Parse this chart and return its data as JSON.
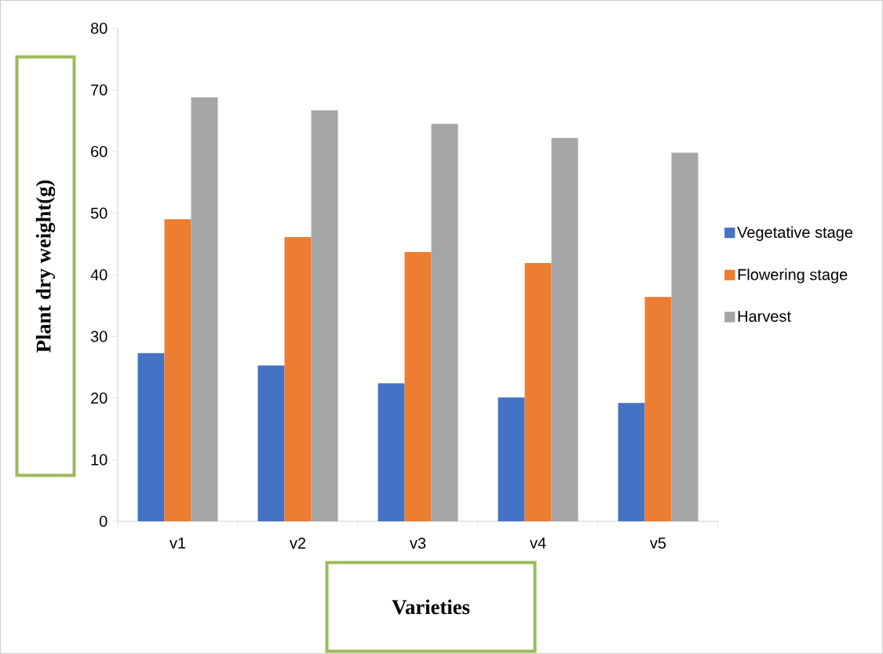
{
  "chart_data": {
    "type": "bar",
    "xlabel": "Varieties",
    "ylabel": "Plant dry weight(g)",
    "categories": [
      "v1",
      "v2",
      "v3",
      "v4",
      "v5"
    ],
    "series": [
      {
        "name": "Vegetative stage",
        "color": "#4472c4",
        "values": [
          27.3,
          25.3,
          22.4,
          20.1,
          19.2
        ]
      },
      {
        "name": "Flowering stage",
        "color": "#ed7d31",
        "values": [
          49.0,
          46.1,
          43.7,
          41.9,
          36.4
        ]
      },
      {
        "name": "Harvest",
        "color": "#a5a5a5",
        "values": [
          68.8,
          66.7,
          64.5,
          62.2,
          59.8
        ]
      }
    ],
    "ylim": [
      0,
      80
    ],
    "yticks": [
      0,
      10,
      20,
      30,
      40,
      50,
      60,
      70,
      80
    ],
    "legend": "right",
    "grid": false
  }
}
